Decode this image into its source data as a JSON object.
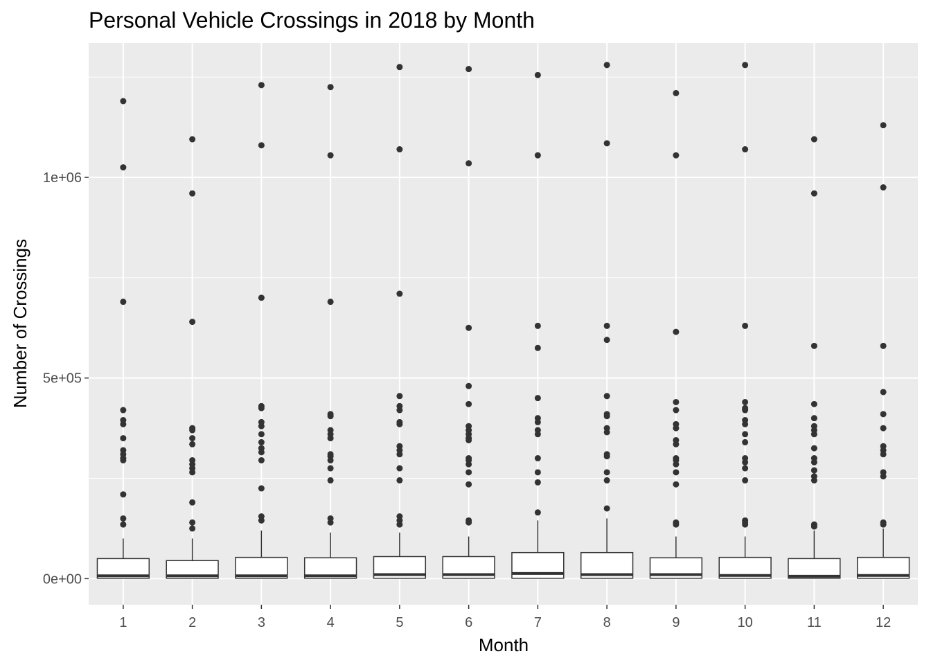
{
  "chart_data": {
    "type": "boxplot",
    "title": "Personal Vehicle Crossings in 2018 by Month",
    "xlabel": "Month",
    "ylabel": "Number of Crossings",
    "categories": [
      "1",
      "2",
      "3",
      "4",
      "5",
      "6",
      "7",
      "8",
      "9",
      "10",
      "11",
      "12"
    ],
    "ylim": [
      -65000,
      1335000
    ],
    "yticks": [
      0,
      500000,
      1000000
    ],
    "ytick_labels": [
      "0e+00",
      "5e+05",
      "1e+06"
    ],
    "grid": true,
    "boxes": [
      {
        "month": "1",
        "lower": 0,
        "q1": 1000,
        "median": 7000,
        "q3": 50000,
        "upper": 100000,
        "outliers": [
          1190000,
          1025000,
          690000,
          420000,
          395000,
          385000,
          350000,
          320000,
          310000,
          300000,
          295000,
          210000,
          150000,
          135000
        ]
      },
      {
        "month": "2",
        "lower": 0,
        "q1": 1000,
        "median": 7000,
        "q3": 45000,
        "upper": 100000,
        "outliers": [
          1095000,
          960000,
          640000,
          375000,
          370000,
          350000,
          335000,
          295000,
          285000,
          275000,
          265000,
          190000,
          140000,
          125000
        ]
      },
      {
        "month": "3",
        "lower": 0,
        "q1": 1000,
        "median": 7000,
        "q3": 53000,
        "upper": 120000,
        "outliers": [
          1230000,
          1080000,
          700000,
          430000,
          425000,
          390000,
          380000,
          360000,
          340000,
          325000,
          315000,
          295000,
          225000,
          155000,
          145000
        ]
      },
      {
        "month": "4",
        "lower": 0,
        "q1": 1000,
        "median": 7000,
        "q3": 52000,
        "upper": 115000,
        "outliers": [
          1225000,
          1055000,
          690000,
          410000,
          405000,
          370000,
          360000,
          350000,
          310000,
          305000,
          295000,
          275000,
          245000,
          150000,
          140000
        ]
      },
      {
        "month": "5",
        "lower": 0,
        "q1": 1000,
        "median": 10000,
        "q3": 55000,
        "upper": 115000,
        "outliers": [
          1275000,
          1070000,
          710000,
          455000,
          430000,
          420000,
          390000,
          385000,
          330000,
          320000,
          310000,
          275000,
          245000,
          155000,
          145000,
          135000
        ]
      },
      {
        "month": "6",
        "lower": 0,
        "q1": 1000,
        "median": 10000,
        "q3": 55000,
        "upper": 105000,
        "outliers": [
          1270000,
          1035000,
          625000,
          480000,
          435000,
          380000,
          370000,
          360000,
          350000,
          345000,
          300000,
          295000,
          285000,
          265000,
          235000,
          145000,
          140000
        ]
      },
      {
        "month": "7",
        "lower": 0,
        "q1": 1000,
        "median": 13000,
        "q3": 65000,
        "upper": 145000,
        "outliers": [
          1255000,
          1055000,
          630000,
          575000,
          450000,
          400000,
          390000,
          370000,
          360000,
          300000,
          265000,
          240000,
          165000
        ]
      },
      {
        "month": "8",
        "lower": 0,
        "q1": 1000,
        "median": 10000,
        "q3": 65000,
        "upper": 150000,
        "outliers": [
          1280000,
          1085000,
          630000,
          595000,
          455000,
          410000,
          405000,
          375000,
          365000,
          310000,
          305000,
          265000,
          245000,
          175000
        ]
      },
      {
        "month": "9",
        "lower": 0,
        "q1": 1000,
        "median": 10000,
        "q3": 52000,
        "upper": 105000,
        "outliers": [
          1210000,
          1055000,
          615000,
          440000,
          420000,
          385000,
          375000,
          345000,
          335000,
          300000,
          295000,
          285000,
          265000,
          235000,
          140000,
          135000
        ]
      },
      {
        "month": "10",
        "lower": 0,
        "q1": 1000,
        "median": 8000,
        "q3": 53000,
        "upper": 105000,
        "outliers": [
          1280000,
          1070000,
          630000,
          440000,
          425000,
          420000,
          395000,
          385000,
          360000,
          340000,
          300000,
          290000,
          275000,
          245000,
          145000,
          140000,
          135000
        ]
      },
      {
        "month": "11",
        "lower": 0,
        "q1": 1000,
        "median": 6000,
        "q3": 50000,
        "upper": 120000,
        "outliers": [
          1095000,
          960000,
          580000,
          435000,
          400000,
          380000,
          370000,
          360000,
          325000,
          300000,
          290000,
          270000,
          255000,
          245000,
          135000,
          130000
        ]
      },
      {
        "month": "12",
        "lower": 0,
        "q1": 1000,
        "median": 8000,
        "q3": 53000,
        "upper": 125000,
        "outliers": [
          1130000,
          975000,
          580000,
          465000,
          410000,
          375000,
          330000,
          320000,
          310000,
          265000,
          255000,
          140000,
          135000
        ]
      }
    ]
  }
}
